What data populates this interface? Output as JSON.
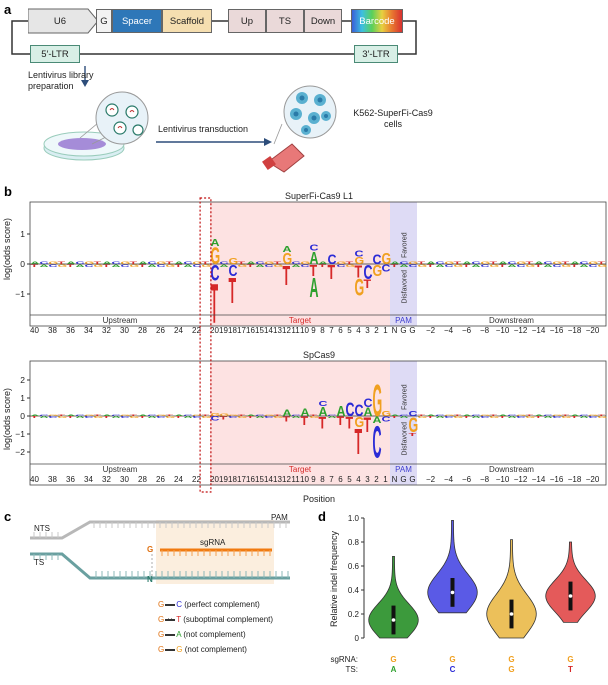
{
  "panel_a": {
    "letter": "a",
    "construct": {
      "u6": "U6",
      "g": "G",
      "spacer": "Spacer",
      "scaffold": "Scaffold",
      "up": "Up",
      "ts": "TS",
      "down": "Down",
      "barcode": "Barcode",
      "ltr5": "5′-LTR",
      "ltr3": "3′-LTR"
    },
    "library_prep": "Lentivirus library\npreparation",
    "transduction": "Lentivirus transduction",
    "cells": "K562-SuperFi-Cas9\ncells",
    "colors": {
      "u6": "#e6e6e6",
      "spacer": "#2e77b8",
      "scaffold": "#f5deb0",
      "target": "#ead9d9",
      "ltr": "#d8efe6"
    }
  },
  "panel_b": {
    "letter": "b",
    "ylabel": "log(odds score)",
    "xlabel": "Position",
    "plots": [
      {
        "title": "SuperFi-Cas9 L1",
        "yticks": [
          "1",
          "0",
          "−1"
        ]
      },
      {
        "title": "SpCas9",
        "yticks": [
          "2",
          "1",
          "0",
          "−1",
          "−2"
        ]
      }
    ],
    "regions": {
      "upstream": "Upstream",
      "target": "Target",
      "pam": "PAM",
      "downstream": "Downstream"
    },
    "pam_labels": {
      "favored": "Favored",
      "disfavored": "Disfavored"
    },
    "xticks_up": [
      "40",
      "38",
      "36",
      "34",
      "32",
      "30",
      "28",
      "26",
      "24",
      "22"
    ],
    "xticks_target": [
      "20",
      "19",
      "18",
      "17",
      "16",
      "15",
      "14",
      "13",
      "12",
      "11",
      "10",
      "9",
      "8",
      "7",
      "6",
      "5",
      "4",
      "3",
      "2",
      "1"
    ],
    "xticks_pam": [
      "N",
      "G",
      "G"
    ],
    "xticks_down": [
      "−2",
      "−4",
      "−6",
      "−8",
      "−10",
      "−12",
      "−14",
      "−16",
      "−18",
      "−20"
    ],
    "colors": {
      "A": "#2ea02e",
      "C": "#2b2bd6",
      "G": "#f0a020",
      "T": "#d62828"
    }
  },
  "panel_c": {
    "letter": "c",
    "nts": "NTS",
    "ts": "TS",
    "pam": "PAM",
    "sgrna": "sgRNA",
    "g_label": "G",
    "n_label": "N",
    "legend": [
      {
        "g": "G",
        "pair": "C",
        "desc": "(perfect complement)"
      },
      {
        "g": "G",
        "pair": "T",
        "desc": "(suboptimal complement)"
      },
      {
        "g": "G",
        "pair": "A",
        "desc": "(not complement)"
      },
      {
        "g": "G",
        "pair": "G",
        "desc": "(not complement)"
      }
    ]
  },
  "panel_d": {
    "letter": "d",
    "ylabel": "Relative indel frequency",
    "yticks": [
      "1.0",
      "0.8",
      "0.6",
      "0.4",
      "0.2",
      "0"
    ],
    "row_sgrna": "sgRNA:",
    "row_ts": "TS:",
    "chart_data": {
      "type": "violin",
      "ylabel": "Relative indel frequency",
      "ylim": [
        0,
        1.0
      ],
      "categories": [
        "G:A",
        "G:C",
        "G:G",
        "G:T"
      ],
      "sgrna": [
        "G",
        "G",
        "G",
        "G"
      ],
      "ts": [
        "A",
        "C",
        "G",
        "T"
      ],
      "medians": [
        0.15,
        0.38,
        0.2,
        0.35
      ],
      "ranges": [
        [
          0,
          0.68
        ],
        [
          0.21,
          0.98
        ],
        [
          0,
          0.82
        ],
        [
          0.13,
          0.8
        ]
      ],
      "fill_colors": [
        "#3c9a3c",
        "#5a5ae6",
        "#ecc05a",
        "#e45a5a"
      ]
    }
  }
}
